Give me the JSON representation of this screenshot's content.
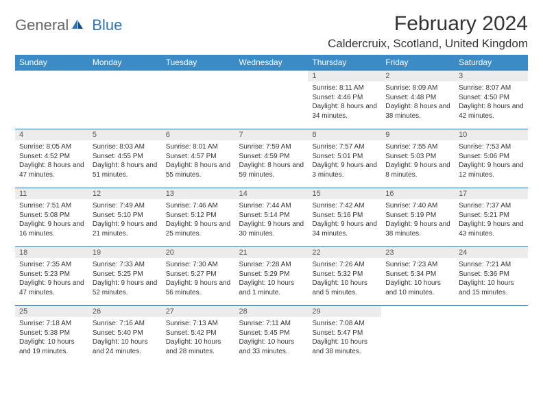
{
  "brand": {
    "part1": "General",
    "part2": "Blue"
  },
  "title": "February 2024",
  "location": "Caldercruix, Scotland, United Kingdom",
  "colors": {
    "header_bg": "#3b8bc7",
    "header_text": "#ffffff",
    "border": "#2e6da4",
    "daynum_bg": "#ececec",
    "text": "#333333",
    "logo_gray": "#666666",
    "logo_blue": "#2e75b6"
  },
  "weekdays": [
    "Sunday",
    "Monday",
    "Tuesday",
    "Wednesday",
    "Thursday",
    "Friday",
    "Saturday"
  ],
  "weeks": [
    [
      {
        "day": "",
        "sunrise": "",
        "sunset": "",
        "daylight": ""
      },
      {
        "day": "",
        "sunrise": "",
        "sunset": "",
        "daylight": ""
      },
      {
        "day": "",
        "sunrise": "",
        "sunset": "",
        "daylight": ""
      },
      {
        "day": "",
        "sunrise": "",
        "sunset": "",
        "daylight": ""
      },
      {
        "day": "1",
        "sunrise": "Sunrise: 8:11 AM",
        "sunset": "Sunset: 4:46 PM",
        "daylight": "Daylight: 8 hours and 34 minutes."
      },
      {
        "day": "2",
        "sunrise": "Sunrise: 8:09 AM",
        "sunset": "Sunset: 4:48 PM",
        "daylight": "Daylight: 8 hours and 38 minutes."
      },
      {
        "day": "3",
        "sunrise": "Sunrise: 8:07 AM",
        "sunset": "Sunset: 4:50 PM",
        "daylight": "Daylight: 8 hours and 42 minutes."
      }
    ],
    [
      {
        "day": "4",
        "sunrise": "Sunrise: 8:05 AM",
        "sunset": "Sunset: 4:52 PM",
        "daylight": "Daylight: 8 hours and 47 minutes."
      },
      {
        "day": "5",
        "sunrise": "Sunrise: 8:03 AM",
        "sunset": "Sunset: 4:55 PM",
        "daylight": "Daylight: 8 hours and 51 minutes."
      },
      {
        "day": "6",
        "sunrise": "Sunrise: 8:01 AM",
        "sunset": "Sunset: 4:57 PM",
        "daylight": "Daylight: 8 hours and 55 minutes."
      },
      {
        "day": "7",
        "sunrise": "Sunrise: 7:59 AM",
        "sunset": "Sunset: 4:59 PM",
        "daylight": "Daylight: 8 hours and 59 minutes."
      },
      {
        "day": "8",
        "sunrise": "Sunrise: 7:57 AM",
        "sunset": "Sunset: 5:01 PM",
        "daylight": "Daylight: 9 hours and 3 minutes."
      },
      {
        "day": "9",
        "sunrise": "Sunrise: 7:55 AM",
        "sunset": "Sunset: 5:03 PM",
        "daylight": "Daylight: 9 hours and 8 minutes."
      },
      {
        "day": "10",
        "sunrise": "Sunrise: 7:53 AM",
        "sunset": "Sunset: 5:06 PM",
        "daylight": "Daylight: 9 hours and 12 minutes."
      }
    ],
    [
      {
        "day": "11",
        "sunrise": "Sunrise: 7:51 AM",
        "sunset": "Sunset: 5:08 PM",
        "daylight": "Daylight: 9 hours and 16 minutes."
      },
      {
        "day": "12",
        "sunrise": "Sunrise: 7:49 AM",
        "sunset": "Sunset: 5:10 PM",
        "daylight": "Daylight: 9 hours and 21 minutes."
      },
      {
        "day": "13",
        "sunrise": "Sunrise: 7:46 AM",
        "sunset": "Sunset: 5:12 PM",
        "daylight": "Daylight: 9 hours and 25 minutes."
      },
      {
        "day": "14",
        "sunrise": "Sunrise: 7:44 AM",
        "sunset": "Sunset: 5:14 PM",
        "daylight": "Daylight: 9 hours and 30 minutes."
      },
      {
        "day": "15",
        "sunrise": "Sunrise: 7:42 AM",
        "sunset": "Sunset: 5:16 PM",
        "daylight": "Daylight: 9 hours and 34 minutes."
      },
      {
        "day": "16",
        "sunrise": "Sunrise: 7:40 AM",
        "sunset": "Sunset: 5:19 PM",
        "daylight": "Daylight: 9 hours and 38 minutes."
      },
      {
        "day": "17",
        "sunrise": "Sunrise: 7:37 AM",
        "sunset": "Sunset: 5:21 PM",
        "daylight": "Daylight: 9 hours and 43 minutes."
      }
    ],
    [
      {
        "day": "18",
        "sunrise": "Sunrise: 7:35 AM",
        "sunset": "Sunset: 5:23 PM",
        "daylight": "Daylight: 9 hours and 47 minutes."
      },
      {
        "day": "19",
        "sunrise": "Sunrise: 7:33 AM",
        "sunset": "Sunset: 5:25 PM",
        "daylight": "Daylight: 9 hours and 52 minutes."
      },
      {
        "day": "20",
        "sunrise": "Sunrise: 7:30 AM",
        "sunset": "Sunset: 5:27 PM",
        "daylight": "Daylight: 9 hours and 56 minutes."
      },
      {
        "day": "21",
        "sunrise": "Sunrise: 7:28 AM",
        "sunset": "Sunset: 5:29 PM",
        "daylight": "Daylight: 10 hours and 1 minute."
      },
      {
        "day": "22",
        "sunrise": "Sunrise: 7:26 AM",
        "sunset": "Sunset: 5:32 PM",
        "daylight": "Daylight: 10 hours and 5 minutes."
      },
      {
        "day": "23",
        "sunrise": "Sunrise: 7:23 AM",
        "sunset": "Sunset: 5:34 PM",
        "daylight": "Daylight: 10 hours and 10 minutes."
      },
      {
        "day": "24",
        "sunrise": "Sunrise: 7:21 AM",
        "sunset": "Sunset: 5:36 PM",
        "daylight": "Daylight: 10 hours and 15 minutes."
      }
    ],
    [
      {
        "day": "25",
        "sunrise": "Sunrise: 7:18 AM",
        "sunset": "Sunset: 5:38 PM",
        "daylight": "Daylight: 10 hours and 19 minutes."
      },
      {
        "day": "26",
        "sunrise": "Sunrise: 7:16 AM",
        "sunset": "Sunset: 5:40 PM",
        "daylight": "Daylight: 10 hours and 24 minutes."
      },
      {
        "day": "27",
        "sunrise": "Sunrise: 7:13 AM",
        "sunset": "Sunset: 5:42 PM",
        "daylight": "Daylight: 10 hours and 28 minutes."
      },
      {
        "day": "28",
        "sunrise": "Sunrise: 7:11 AM",
        "sunset": "Sunset: 5:45 PM",
        "daylight": "Daylight: 10 hours and 33 minutes."
      },
      {
        "day": "29",
        "sunrise": "Sunrise: 7:08 AM",
        "sunset": "Sunset: 5:47 PM",
        "daylight": "Daylight: 10 hours and 38 minutes."
      },
      {
        "day": "",
        "sunrise": "",
        "sunset": "",
        "daylight": ""
      },
      {
        "day": "",
        "sunrise": "",
        "sunset": "",
        "daylight": ""
      }
    ]
  ]
}
